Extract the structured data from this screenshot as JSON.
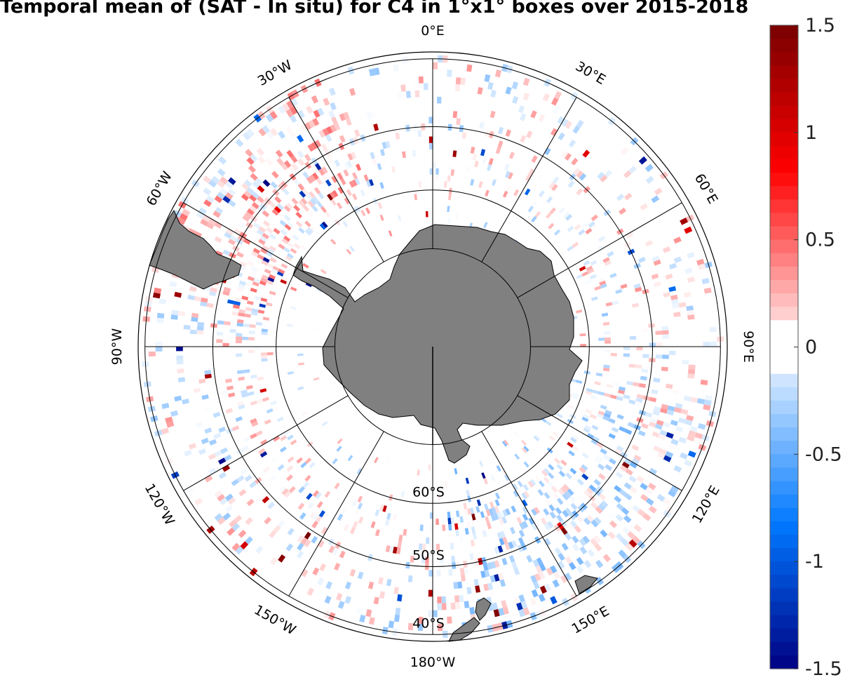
{
  "title": "Temporal mean of (SAT - In situ) for C4 in 1°x1° boxes over 2015-2018",
  "map": {
    "projection": "south polar stereographic",
    "pixel_values": "scattered 1°x1° boxes of SAT minus In situ differences, values mostly within ±0.5, sampled between 40°S and about 65°S",
    "land_color": "#808080",
    "longitude_labels": [
      {
        "lon": 0,
        "text": "0°E"
      },
      {
        "lon": 30,
        "text": "30°E"
      },
      {
        "lon": 60,
        "text": "60°E"
      },
      {
        "lon": 90,
        "text": "90°E"
      },
      {
        "lon": 120,
        "text": "120°E"
      },
      {
        "lon": 150,
        "text": "150°E"
      },
      {
        "lon": 180,
        "text": "180°W"
      },
      {
        "lon": -150,
        "text": "150°W"
      },
      {
        "lon": -120,
        "text": "120°W"
      },
      {
        "lon": -90,
        "text": "90°W"
      },
      {
        "lon": -60,
        "text": "60°W"
      },
      {
        "lon": -30,
        "text": "30°W"
      }
    ],
    "latitude_labels": [
      {
        "lat": -60,
        "text": "60°S"
      },
      {
        "lat": -50,
        "text": "50°S"
      },
      {
        "lat": -40,
        "text": "40°S"
      }
    ]
  },
  "colorbar": {
    "min": -1.5,
    "max": 1.5,
    "ticks": [
      {
        "value": 1.5,
        "text": "1.5"
      },
      {
        "value": 1,
        "text": "1"
      },
      {
        "value": 0.5,
        "text": "0.5"
      },
      {
        "value": 0,
        "text": "0"
      },
      {
        "value": -0.5,
        "text": "-0.5"
      },
      {
        "value": -1,
        "text": "-1"
      },
      {
        "value": -1.5,
        "text": "-1.5"
      }
    ]
  }
}
